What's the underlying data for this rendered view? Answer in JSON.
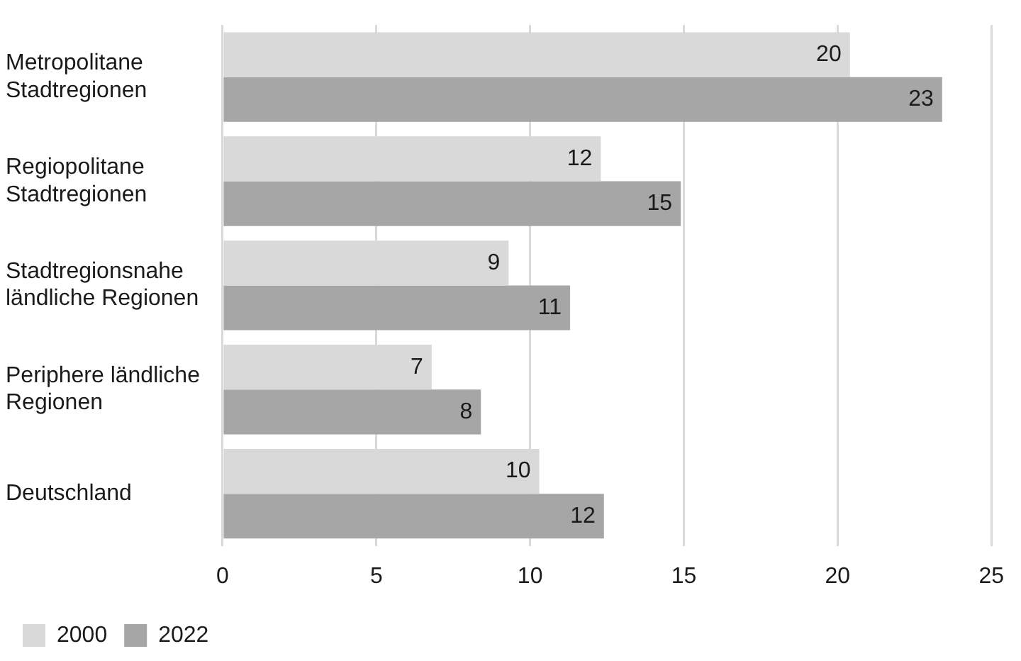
{
  "chart_data": {
    "type": "bar",
    "orientation": "horizontal",
    "categories": [
      "Metropolitane\nStadtregionen",
      "Regiopolitane\nStadtregionen",
      "Stadtregionsnahe\nländliche Regionen",
      "Periphere ländliche\nRegionen",
      "Deutschland"
    ],
    "series": [
      {
        "name": "2000",
        "color": "#d9d9d9",
        "values": [
          20.4,
          12.3,
          9.3,
          6.8,
          10.3
        ],
        "value_labels": [
          "20",
          "12",
          "9",
          "7",
          "10"
        ]
      },
      {
        "name": "2022",
        "color": "#a6a6a6",
        "values": [
          23.4,
          14.9,
          11.3,
          8.4,
          12.4
        ],
        "value_labels": [
          "23",
          "15",
          "11",
          "8",
          "12"
        ]
      }
    ],
    "xlim": [
      0,
      25
    ],
    "xticks": [
      0,
      5,
      10,
      15,
      20,
      25
    ],
    "grid": "x",
    "legend": "bottom left"
  }
}
